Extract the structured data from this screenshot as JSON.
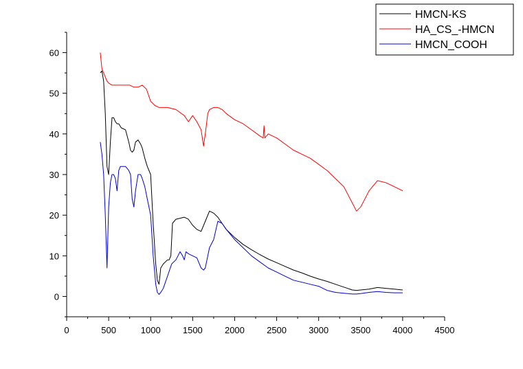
{
  "chart_data": {
    "type": "line",
    "title": "",
    "xlabel": "",
    "ylabel": "",
    "xlim": [
      0,
      4500
    ],
    "ylim": [
      -5,
      65
    ],
    "xticks": [
      0,
      500,
      1000,
      1500,
      2000,
      2500,
      3000,
      3500,
      4000,
      4500
    ],
    "yticks": [
      0,
      10,
      20,
      30,
      40,
      50,
      60
    ],
    "grid": false,
    "legend_position": "top-right",
    "series": [
      {
        "name": "HMCN-KS",
        "color": "#000000",
        "x": [
          400,
          420,
          440,
          460,
          480,
          500,
          520,
          540,
          560,
          580,
          600,
          620,
          650,
          700,
          740,
          760,
          780,
          800,
          820,
          850,
          880,
          900,
          930,
          960,
          1000,
          1030,
          1060,
          1080,
          1100,
          1120,
          1150,
          1200,
          1220,
          1240,
          1260,
          1300,
          1400,
          1450,
          1500,
          1550,
          1600,
          1650,
          1700,
          1750,
          1800,
          1850,
          1900,
          2000,
          2100,
          2200,
          2300,
          2400,
          2500,
          2600,
          2700,
          2800,
          2900,
          3000,
          3100,
          3200,
          3300,
          3400,
          3450,
          3500,
          3600,
          3700,
          3800,
          3900,
          4000
        ],
        "y": [
          55,
          55.5,
          53,
          45,
          32,
          30,
          38,
          44,
          44,
          43,
          42.5,
          42.5,
          41.5,
          41,
          38,
          36,
          35.5,
          36,
          38,
          38.5,
          37.5,
          36.5,
          34,
          32,
          30,
          18,
          8,
          4,
          3,
          7,
          8,
          9,
          9,
          10,
          18,
          19,
          19.5,
          19,
          17.5,
          16.5,
          16,
          18.5,
          21,
          20.5,
          19.5,
          18,
          16.5,
          14.5,
          12.8,
          11.5,
          10.3,
          9.2,
          8.3,
          7.4,
          6.5,
          5.8,
          5,
          4.3,
          3.7,
          3,
          2.3,
          1.6,
          1.5,
          1.6,
          1.8,
          2.2,
          2,
          1.8,
          1.6
        ]
      },
      {
        "name": "HA_CS_-HMCN",
        "color": "#ff0000",
        "x": [
          400,
          420,
          440,
          460,
          480,
          500,
          540,
          600,
          650,
          700,
          750,
          800,
          850,
          900,
          950,
          1000,
          1050,
          1100,
          1150,
          1200,
          1300,
          1400,
          1450,
          1500,
          1550,
          1600,
          1630,
          1650,
          1680,
          1700,
          1750,
          1800,
          1850,
          1900,
          2000,
          2100,
          2200,
          2300,
          2340,
          2350,
          2360,
          2400,
          2500,
          2600,
          2700,
          2800,
          2900,
          3000,
          3100,
          3200,
          3300,
          3400,
          3450,
          3500,
          3600,
          3700,
          3800,
          3900,
          4000
        ],
        "y": [
          60,
          56,
          55,
          54,
          53,
          52.5,
          52,
          52,
          52,
          52,
          52,
          51.5,
          51.5,
          52,
          51,
          48,
          47,
          46.5,
          46.5,
          46.5,
          46,
          44.5,
          43,
          44.5,
          43,
          41,
          37,
          40,
          45,
          46,
          46.5,
          46.5,
          46,
          45,
          43.5,
          42.5,
          41,
          39.5,
          39,
          42,
          39,
          40,
          39,
          37.5,
          36,
          35,
          34,
          32.5,
          31,
          29,
          27,
          23,
          21,
          22,
          26,
          28.5,
          28,
          27,
          26
        ]
      },
      {
        "name": "HMCN_COOH",
        "color": "#0000cc",
        "x": [
          400,
          420,
          440,
          460,
          480,
          500,
          520,
          540,
          560,
          580,
          600,
          620,
          640,
          660,
          680,
          700,
          740,
          760,
          780,
          800,
          820,
          850,
          880,
          900,
          930,
          960,
          1000,
          1030,
          1060,
          1080,
          1100,
          1120,
          1150,
          1200,
          1250,
          1300,
          1350,
          1380,
          1400,
          1420,
          1450,
          1500,
          1550,
          1600,
          1630,
          1650,
          1700,
          1750,
          1800,
          1850,
          1900,
          2000,
          2100,
          2200,
          2300,
          2400,
          2500,
          2600,
          2700,
          2800,
          2900,
          3000,
          3100,
          3200,
          3300,
          3400,
          3450,
          3500,
          3600,
          3700,
          3800,
          3900,
          4000
        ],
        "y": [
          38,
          35,
          30,
          20,
          7,
          22,
          28,
          30,
          30,
          29,
          26,
          31,
          32,
          32,
          32,
          32,
          31,
          30,
          24,
          22,
          26,
          30,
          30,
          29,
          27,
          24,
          20,
          10,
          3,
          1,
          0.5,
          1,
          2,
          5,
          8,
          9,
          11,
          10,
          9,
          11,
          10.5,
          10,
          9.5,
          7,
          6.5,
          7,
          12,
          14,
          18.5,
          18,
          16.5,
          14,
          12,
          10,
          8.5,
          7,
          6,
          5,
          4,
          3.5,
          3,
          2.5,
          1.5,
          1,
          0.8,
          0.6,
          0.6,
          0.7,
          1,
          1.2,
          1,
          0.9,
          0.9
        ]
      }
    ]
  }
}
